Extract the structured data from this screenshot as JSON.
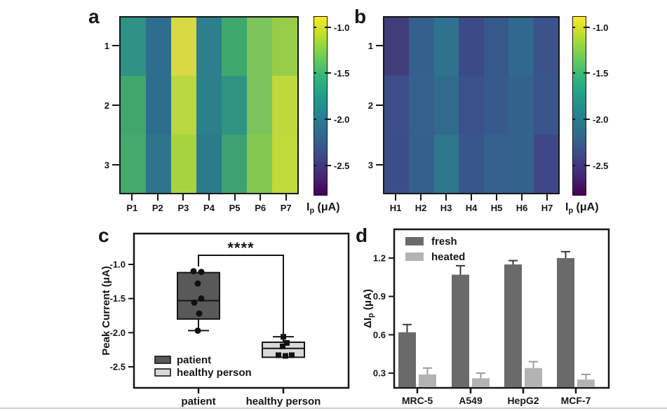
{
  "panels": {
    "a": {
      "letter": "a",
      "row_labels": [
        "1",
        "2",
        "3"
      ],
      "col_labels": [
        "P1",
        "P2",
        "P3",
        "P4",
        "P5",
        "P6",
        "P7"
      ],
      "colorbar": {
        "tick_labels": [
          "-1.0",
          "-1.5",
          "-2.0",
          "-2.5"
        ],
        "label_symbol": "I",
        "label_sub": "p",
        "label_unit": " (μA)"
      }
    },
    "b": {
      "letter": "b",
      "row_labels": [
        "1",
        "2",
        "3"
      ],
      "col_labels": [
        "H1",
        "H2",
        "H3",
        "H4",
        "H5",
        "H6",
        "H7"
      ],
      "colorbar": {
        "tick_labels": [
          "-1.0",
          "-1.5",
          "-2.0",
          "-2.5"
        ],
        "label_symbol": "I",
        "label_sub": "p",
        "label_unit": " (μA)"
      }
    },
    "c": {
      "letter": "c",
      "ylabel": "Peak Current (μA)",
      "ytick_labels": [
        "-1.0",
        "-1.5",
        "-2.0",
        "-2.5"
      ],
      "categories": [
        "patient",
        "healthy person"
      ],
      "legend": [
        "patient",
        "healthy person"
      ],
      "significance": "****"
    },
    "d": {
      "letter": "d",
      "ylabel_parts": {
        "prefix": "ΔI",
        "sub": "p",
        "unit": " (μA)"
      },
      "ytick_labels": [
        "0.3",
        "0.6",
        "0.9",
        "1.2"
      ],
      "categories": [
        "MRC-5",
        "A549",
        "HepG2",
        "MCF-7"
      ],
      "legend": [
        "fresh",
        "heated"
      ]
    }
  },
  "colors": {
    "axis": "#161616",
    "patient_box_fill": "#595959",
    "healthy_box_fill": "#d9d9d9",
    "fresh_bar": "#6a6a6a",
    "heated_bar": "#b3b3b3",
    "fresh_err": "#3a3a3a",
    "heated_err": "#9c9c9c",
    "viridis_top_to_bottom": [
      "#fde725",
      "#b5de2b",
      "#6ece58",
      "#35b779",
      "#1f9e89",
      "#26828e",
      "#31688e",
      "#3e4989",
      "#462777",
      "#440154"
    ]
  },
  "chart_data": [
    {
      "panel": "a",
      "type": "heatmap",
      "title": "",
      "rows": [
        "1",
        "2",
        "3"
      ],
      "columns": [
        "P1",
        "P2",
        "P3",
        "P4",
        "P5",
        "P6",
        "P7"
      ],
      "values_uA": [
        [
          -1.76,
          -2.1,
          -1.02,
          -1.97,
          -1.6,
          -1.31,
          -1.23
        ],
        [
          -1.6,
          -2.1,
          -1.13,
          -1.93,
          -1.74,
          -1.31,
          -1.09
        ],
        [
          -1.58,
          -2.03,
          -1.19,
          -1.97,
          -1.64,
          -1.29,
          -1.09
        ]
      ],
      "cell_colors": [
        [
          "#2e9285",
          "#2d6d8e",
          "#d8d943",
          "#2d7f8e",
          "#3fa86c",
          "#7cc45b",
          "#97cd47"
        ],
        [
          "#3fa76c",
          "#2d6d8e",
          "#b9d73f",
          "#2b808b",
          "#2f9582",
          "#7cc35b",
          "#c0d83c"
        ],
        [
          "#44a96a",
          "#2e748c",
          "#a8d341",
          "#2c7b8d",
          "#3da26f",
          "#84c751",
          "#c2d93a"
        ]
      ],
      "colorbar": {
        "label": "Ip (μA)",
        "ticks": [
          -1.0,
          -1.5,
          -2.0,
          -2.5
        ],
        "value_range_top_to_bottom": [
          -0.88,
          -2.83
        ],
        "colormap": "viridis"
      }
    },
    {
      "panel": "b",
      "type": "heatmap",
      "title": "",
      "rows": [
        "1",
        "2",
        "3"
      ],
      "columns": [
        "H1",
        "H2",
        "H3",
        "H4",
        "H5",
        "H6",
        "H7"
      ],
      "values_uA": [
        [
          -2.5,
          -2.19,
          -2.03,
          -2.4,
          -2.26,
          -2.11,
          -2.3
        ],
        [
          -2.34,
          -2.17,
          -2.09,
          -2.32,
          -2.25,
          -2.17,
          -2.28
        ],
        [
          -2.34,
          -2.21,
          -2.01,
          -2.26,
          -2.17,
          -2.17,
          -2.42
        ]
      ],
      "cell_colors": [
        [
          "#413d7b",
          "#35608d",
          "#2f728d",
          "#3d4a88",
          "#38588c",
          "#31688e",
          "#3a538b"
        ],
        [
          "#3c4f8a",
          "#34618d",
          "#306b8e",
          "#3b518b",
          "#37598c",
          "#33628d",
          "#39558b"
        ],
        [
          "#3c4e8a",
          "#355f8d",
          "#2e768c",
          "#38568c",
          "#34618d",
          "#33628d",
          "#3f4788"
        ]
      ],
      "colorbar": {
        "label": "Ip (μA)",
        "ticks": [
          -1.0,
          -1.5,
          -2.0,
          -2.5
        ],
        "value_range_top_to_bottom": [
          -0.88,
          -2.83
        ],
        "colormap": "viridis"
      }
    },
    {
      "panel": "c",
      "type": "box",
      "ylabel": "Peak Current (μA)",
      "ylim": [
        -2.8,
        -0.55
      ],
      "yticks": [
        -1.0,
        -1.5,
        -2.0,
        -2.5
      ],
      "grid": false,
      "legend_position": "inside bottom-left",
      "significance": "****",
      "groups": [
        {
          "label": "patient",
          "marker": "circle",
          "fill": "#595959",
          "box": {
            "whisker_high": -1.12,
            "q3": -1.12,
            "median": -1.53,
            "q1": -1.8,
            "whisker_low": -1.97
          },
          "points": [
            -1.1,
            -1.11,
            -1.28,
            -1.5,
            -1.56,
            -1.72,
            -1.97
          ]
        },
        {
          "label": "healthy person",
          "marker": "square",
          "fill": "#d9d9d9",
          "box": {
            "whisker_high": -2.06,
            "q3": -2.14,
            "median": -2.23,
            "q1": -2.36,
            "whisker_low": -2.36
          },
          "points": [
            -2.06,
            -2.15,
            -2.2,
            -2.33,
            -2.34,
            -2.33
          ]
        }
      ]
    },
    {
      "panel": "d",
      "type": "bar",
      "ylabel": "ΔIp (μA)",
      "ylim": [
        0.185,
        1.42
      ],
      "yticks": [
        0.3,
        0.6,
        0.9,
        1.2
      ],
      "grid": false,
      "legend_position": "inside top-left",
      "categories": [
        "MRC-5",
        "A549",
        "HepG2",
        "MCF-7"
      ],
      "series": [
        {
          "name": "fresh",
          "color": "#6a6a6a",
          "values": [
            0.62,
            1.07,
            1.15,
            1.2
          ],
          "errors": [
            0.06,
            0.07,
            0.03,
            0.05
          ]
        },
        {
          "name": "heated",
          "color": "#b3b3b3",
          "values": [
            0.29,
            0.26,
            0.34,
            0.25
          ],
          "errors": [
            0.05,
            0.04,
            0.05,
            0.04
          ]
        }
      ]
    }
  ]
}
